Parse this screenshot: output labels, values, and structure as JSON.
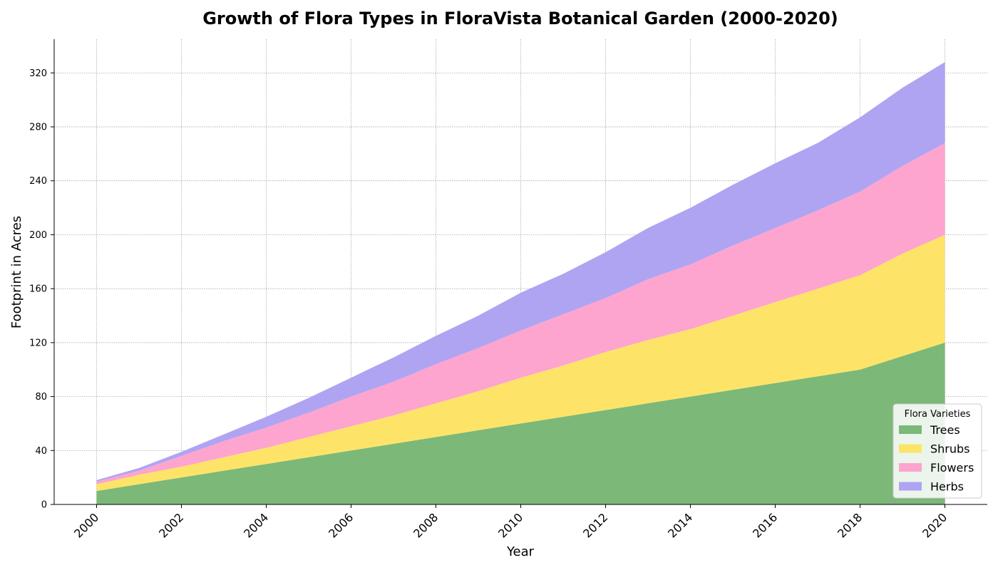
{
  "chart_data": {
    "type": "area",
    "stacked": true,
    "title": "Growth of Flora Types in FloraVista Botanical Garden (2000-2020)",
    "xlabel": "Year",
    "ylabel": "Footprint in Acres",
    "x": [
      2000,
      2001,
      2002,
      2003,
      2004,
      2005,
      2006,
      2007,
      2008,
      2009,
      2010,
      2011,
      2012,
      2013,
      2014,
      2015,
      2016,
      2017,
      2018,
      2019,
      2020
    ],
    "xticks": [
      2000,
      2002,
      2004,
      2006,
      2008,
      2010,
      2012,
      2014,
      2016,
      2018,
      2020
    ],
    "xtick_labels": [
      "2000",
      "2002",
      "2004",
      "2006",
      "2008",
      "2010",
      "2012",
      "2014",
      "2016",
      "2018",
      "2020"
    ],
    "xlim": [
      1999,
      2021
    ],
    "yticks": [
      0,
      40,
      80,
      120,
      160,
      200,
      240,
      280,
      320
    ],
    "ytick_labels": [
      "0",
      "40",
      "80",
      "120",
      "160",
      "200",
      "240",
      "280",
      "320"
    ],
    "ylim": [
      0,
      345
    ],
    "grid": true,
    "legend": {
      "title": "Flora Varieties",
      "placement": "bottom-right"
    },
    "series": [
      {
        "name": "Trees",
        "color": "#7cb878",
        "values": [
          10,
          15,
          20,
          25,
          30,
          35,
          40,
          45,
          50,
          55,
          60,
          65,
          70,
          75,
          80,
          85,
          90,
          95,
          100,
          110,
          120
        ]
      },
      {
        "name": "Shrubs",
        "color": "#fde468",
        "values": [
          5,
          7,
          8,
          10,
          12,
          15,
          18,
          21,
          25,
          29,
          34,
          38,
          43,
          47,
          50,
          55,
          60,
          65,
          70,
          76,
          80
        ]
      },
      {
        "name": "Flowers",
        "color": "#fda4cf",
        "values": [
          2,
          3,
          8,
          12,
          15,
          18,
          22,
          25,
          29,
          32,
          35,
          38,
          40,
          45,
          48,
          52,
          55,
          58,
          62,
          65,
          68
        ]
      },
      {
        "name": "Herbs",
        "color": "#afa4f2",
        "values": [
          1,
          2,
          3,
          5,
          8,
          11,
          14,
          18,
          21,
          24,
          28,
          30,
          34,
          38,
          42,
          45,
          48,
          50,
          55,
          58,
          60
        ]
      }
    ]
  }
}
